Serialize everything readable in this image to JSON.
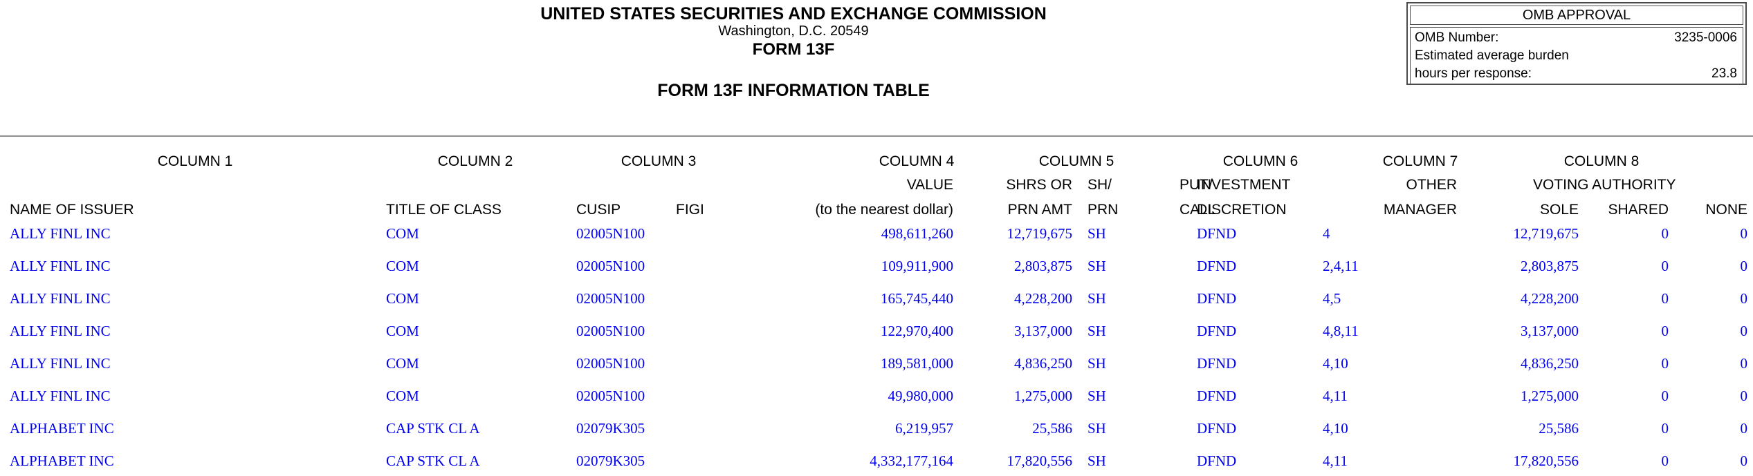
{
  "header": {
    "agency": "UNITED STATES SECURITIES AND EXCHANGE COMMISSION",
    "address": "Washington, D.C. 20549",
    "form_name": "FORM 13F",
    "table_title": "FORM 13F INFORMATION TABLE"
  },
  "omb": {
    "box_title": "OMB APPROVAL",
    "number_label": "OMB Number:",
    "number_value": "3235-0006",
    "burden_line1": "Estimated average burden",
    "burden_line2": "hours per response:",
    "burden_value": "23.8"
  },
  "table_header": {
    "column_labels": [
      "COLUMN 1",
      "COLUMN 2",
      "COLUMN 3",
      "COLUMN 4",
      "COLUMN 5",
      "COLUMN 6",
      "COLUMN 7",
      "COLUMN 8"
    ],
    "line2": {
      "value": "VALUE",
      "shrs_or": "SHRS OR",
      "sh": "SH/",
      "put": "PUT/",
      "investment": "INVESTMENT",
      "other": "OTHER",
      "voting_authority": "VOTING AUTHORITY"
    },
    "line3": {
      "name_of_issuer": "NAME OF ISSUER",
      "title_of_class": "TITLE OF CLASS",
      "cusip": "CUSIP",
      "figi": "FIGI",
      "to_nearest_dollar": "(to the nearest dollar)",
      "prn_amt": "PRN AMT",
      "prn": "PRN",
      "call": "CALL",
      "discretion": "DISCRETION",
      "manager": "MANAGER",
      "sole": "SOLE",
      "shared": "SHARED",
      "none": "NONE"
    }
  },
  "rows": [
    {
      "issuer": "ALLY FINL INC",
      "class_title": "COM",
      "cusip": "02005N100",
      "figi": "",
      "value": "498,611,260",
      "amount": "12,719,675",
      "unit": "SH",
      "put_call": "",
      "discretion": "DFND",
      "manager": "4",
      "sole": "12,719,675",
      "shared": "0",
      "none": "0"
    },
    {
      "issuer": "ALLY FINL INC",
      "class_title": "COM",
      "cusip": "02005N100",
      "figi": "",
      "value": "109,911,900",
      "amount": "2,803,875",
      "unit": "SH",
      "put_call": "",
      "discretion": "DFND",
      "manager": "2,4,11",
      "sole": "2,803,875",
      "shared": "0",
      "none": "0"
    },
    {
      "issuer": "ALLY FINL INC",
      "class_title": "COM",
      "cusip": "02005N100",
      "figi": "",
      "value": "165,745,440",
      "amount": "4,228,200",
      "unit": "SH",
      "put_call": "",
      "discretion": "DFND",
      "manager": "4,5",
      "sole": "4,228,200",
      "shared": "0",
      "none": "0"
    },
    {
      "issuer": "ALLY FINL INC",
      "class_title": "COM",
      "cusip": "02005N100",
      "figi": "",
      "value": "122,970,400",
      "amount": "3,137,000",
      "unit": "SH",
      "put_call": "",
      "discretion": "DFND",
      "manager": "4,8,11",
      "sole": "3,137,000",
      "shared": "0",
      "none": "0"
    },
    {
      "issuer": "ALLY FINL INC",
      "class_title": "COM",
      "cusip": "02005N100",
      "figi": "",
      "value": "189,581,000",
      "amount": "4,836,250",
      "unit": "SH",
      "put_call": "",
      "discretion": "DFND",
      "manager": "4,10",
      "sole": "4,836,250",
      "shared": "0",
      "none": "0"
    },
    {
      "issuer": "ALLY FINL INC",
      "class_title": "COM",
      "cusip": "02005N100",
      "figi": "",
      "value": "49,980,000",
      "amount": "1,275,000",
      "unit": "SH",
      "put_call": "",
      "discretion": "DFND",
      "manager": "4,11",
      "sole": "1,275,000",
      "shared": "0",
      "none": "0"
    },
    {
      "issuer": "ALPHABET INC",
      "class_title": "CAP STK CL A",
      "cusip": "02079K305",
      "figi": "",
      "value": "6,219,957",
      "amount": "25,586",
      "unit": "SH",
      "put_call": "",
      "discretion": "DFND",
      "manager": "4,10",
      "sole": "25,586",
      "shared": "0",
      "none": "0"
    },
    {
      "issuer": "ALPHABET INC",
      "class_title": "CAP STK CL A",
      "cusip": "02079K305",
      "figi": "",
      "value": "4,332,177,164",
      "amount": "17,820,556",
      "unit": "SH",
      "put_call": "",
      "discretion": "DFND",
      "manager": "4,11",
      "sole": "17,820,556",
      "shared": "0",
      "none": "0"
    }
  ],
  "colors": {
    "data_text": "#0000EE",
    "rule": "#909090"
  }
}
